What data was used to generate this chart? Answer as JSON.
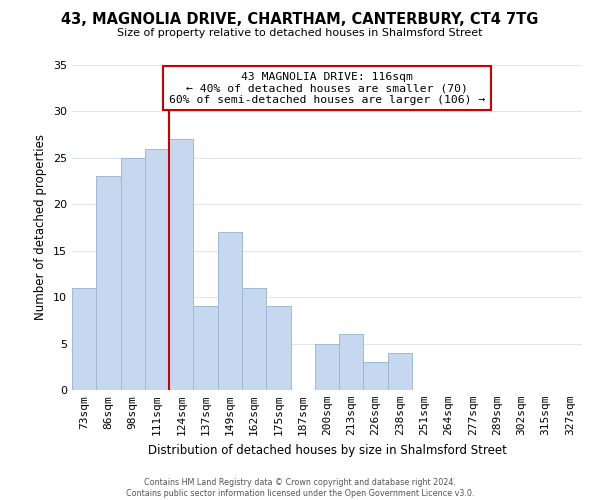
{
  "title": "43, MAGNOLIA DRIVE, CHARTHAM, CANTERBURY, CT4 7TG",
  "subtitle": "Size of property relative to detached houses in Shalmsford Street",
  "xlabel": "Distribution of detached houses by size in Shalmsford Street",
  "ylabel": "Number of detached properties",
  "bar_labels": [
    "73sqm",
    "86sqm",
    "98sqm",
    "111sqm",
    "124sqm",
    "137sqm",
    "149sqm",
    "162sqm",
    "175sqm",
    "187sqm",
    "200sqm",
    "213sqm",
    "226sqm",
    "238sqm",
    "251sqm",
    "264sqm",
    "277sqm",
    "289sqm",
    "302sqm",
    "315sqm",
    "327sqm"
  ],
  "bar_values": [
    11,
    23,
    25,
    26,
    27,
    9,
    17,
    11,
    9,
    0,
    5,
    6,
    3,
    4,
    0,
    0,
    0,
    0,
    0,
    0,
    0
  ],
  "bar_color": "#c5d8f0",
  "bar_edge_color": "#a0b8d8",
  "vline_x": 3.5,
  "vline_color": "#cc0000",
  "ylim": [
    0,
    35
  ],
  "yticks": [
    0,
    5,
    10,
    15,
    20,
    25,
    30,
    35
  ],
  "annotation_title": "43 MAGNOLIA DRIVE: 116sqm",
  "annotation_line1": "← 40% of detached houses are smaller (70)",
  "annotation_line2": "60% of semi-detached houses are larger (106) →",
  "annotation_box_color": "#ffffff",
  "annotation_box_edge": "#cc0000",
  "footer_line1": "Contains HM Land Registry data © Crown copyright and database right 2024.",
  "footer_line2": "Contains public sector information licensed under the Open Government Licence v3.0.",
  "background_color": "#ffffff",
  "grid_color": "#dde8f5"
}
